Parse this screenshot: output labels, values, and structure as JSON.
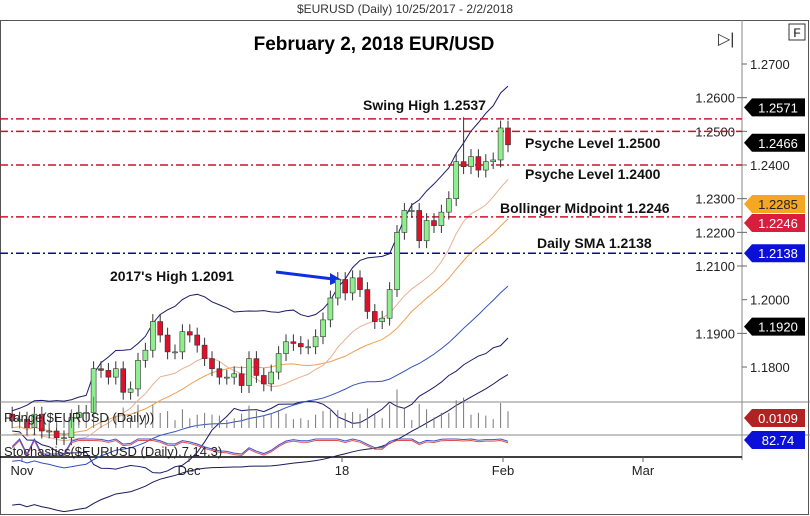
{
  "header": "$EURUSD (Daily)  10/25/2017 - 2/2/2018",
  "chart_data": {
    "type": "candlestick",
    "title": "February 2, 2018 EUR/USD",
    "symbol": "$EURUSD (Daily)",
    "ylim": [
      1.17,
      1.276
    ],
    "y_ticks": [
      "1.2700",
      "1.2600",
      "1.2500",
      "1.2400",
      "1.2300",
      "1.2200",
      "1.2100",
      "1.2000",
      "1.1900",
      "1.1800"
    ],
    "x_ticks": [
      "Nov",
      "Dec",
      "18",
      "Feb",
      "Mar"
    ],
    "close": [
      1.164,
      1.1645,
      1.162,
      1.166,
      1.161,
      1.161,
      1.159,
      1.159,
      1.165,
      1.1665,
      1.1665,
      1.1795,
      1.179,
      1.177,
      1.1795,
      1.1725,
      1.1735,
      1.182,
      1.185,
      1.1935,
      1.1895,
      1.1845,
      1.1845,
      1.1905,
      1.1895,
      1.1865,
      1.1825,
      1.1795,
      1.177,
      1.177,
      1.178,
      1.1745,
      1.1825,
      1.1775,
      1.175,
      1.1785,
      1.184,
      1.1875,
      1.187,
      1.186,
      1.186,
      1.189,
      1.194,
      1.2005,
      1.206,
      1.202,
      1.2065,
      1.203,
      1.1965,
      1.1935,
      1.1945,
      1.203,
      1.22,
      1.2265,
      1.2265,
      1.2175,
      1.2235,
      1.222,
      1.226,
      1.23,
      1.241,
      1.2395,
      1.2425,
      1.2385,
      1.241,
      1.2415,
      1.251,
      1.246
    ],
    "levels": [
      {
        "label": "Swing High 1.2537",
        "value": 1.2537,
        "color": "#d0102a"
      },
      {
        "label": "Psyche Level 1.2500",
        "value": 1.25,
        "color": "#d0102a"
      },
      {
        "label": "Psyche Level 1.2400",
        "value": 1.24,
        "color": "#d0102a"
      },
      {
        "label": "Bollinger Midpoint 1.2246",
        "value": 1.2246,
        "color": "#d0102a"
      },
      {
        "label": "Daily SMA 1.2138",
        "value": 1.2138,
        "color": "#0a0a9a"
      }
    ],
    "annotation": "2017's High 1.2091",
    "price_tags": [
      {
        "text": "1.2571",
        "value": 1.2571,
        "bg": "#000000",
        "fg": "#ffffff"
      },
      {
        "text": "1.2466",
        "value": 1.2466,
        "bg": "#000000",
        "fg": "#ffffff"
      },
      {
        "text": "1.2285",
        "value": 1.2285,
        "bg": "#f5a623",
        "fg": "#222222"
      },
      {
        "text": "1.2246",
        "value": 1.2246,
        "bg": "#d81e3c",
        "fg": "#ffffff"
      },
      {
        "text": "1.2138",
        "value": 1.2138,
        "bg": "#0a10d8",
        "fg": "#ffffff"
      },
      {
        "text": "1.1920",
        "value": 1.192,
        "bg": "#000000",
        "fg": "#ffffff"
      }
    ],
    "range_panel": {
      "label": "Range($EURUSD (Daily))",
      "last": "0.0109",
      "color": "#b22222"
    },
    "stoch_panel": {
      "label": "Stochastics($EURUSD (Daily),7,14,3)",
      "last": "82.74",
      "color": "#0a10d8"
    },
    "up_color": "#90ee90",
    "down_color": "#e0102a"
  }
}
